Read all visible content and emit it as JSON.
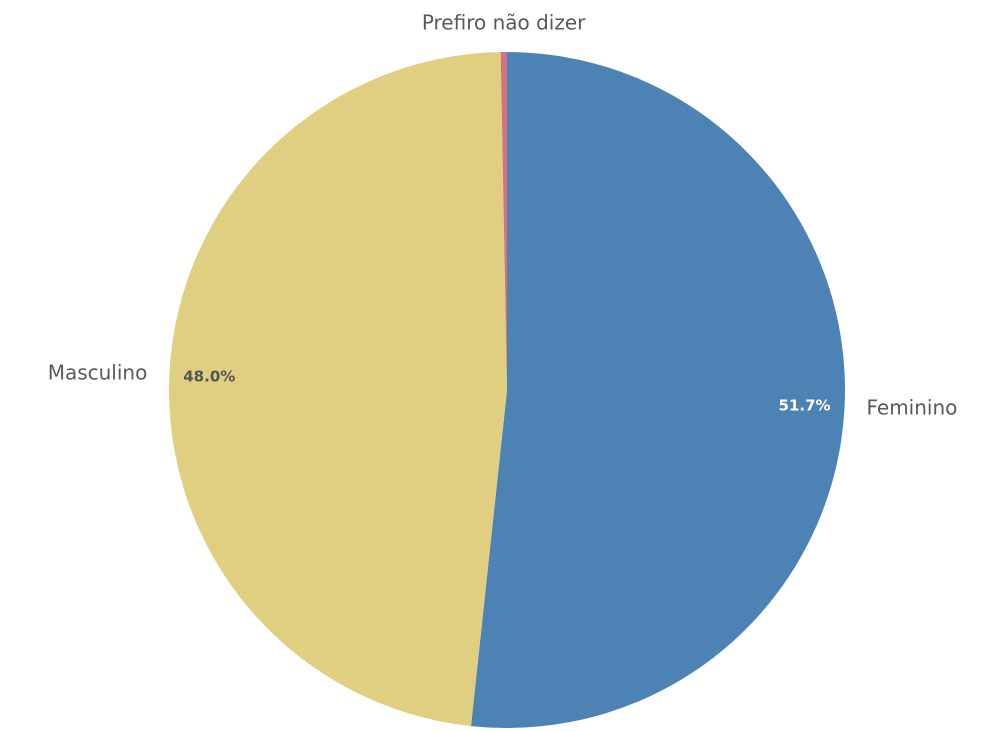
{
  "chart_data": {
    "type": "pie",
    "categories": [
      "Feminino",
      "Masculino",
      "Prefiro não dizer"
    ],
    "values": [
      51.7,
      48.0,
      0.3
    ],
    "value_labels": [
      "51.7%",
      "48.0%",
      null
    ],
    "colors": [
      "#4d82b4",
      "#e0cf80",
      "#d6727f"
    ],
    "label_colors": [
      "#ffffff",
      "#555555",
      null
    ]
  }
}
